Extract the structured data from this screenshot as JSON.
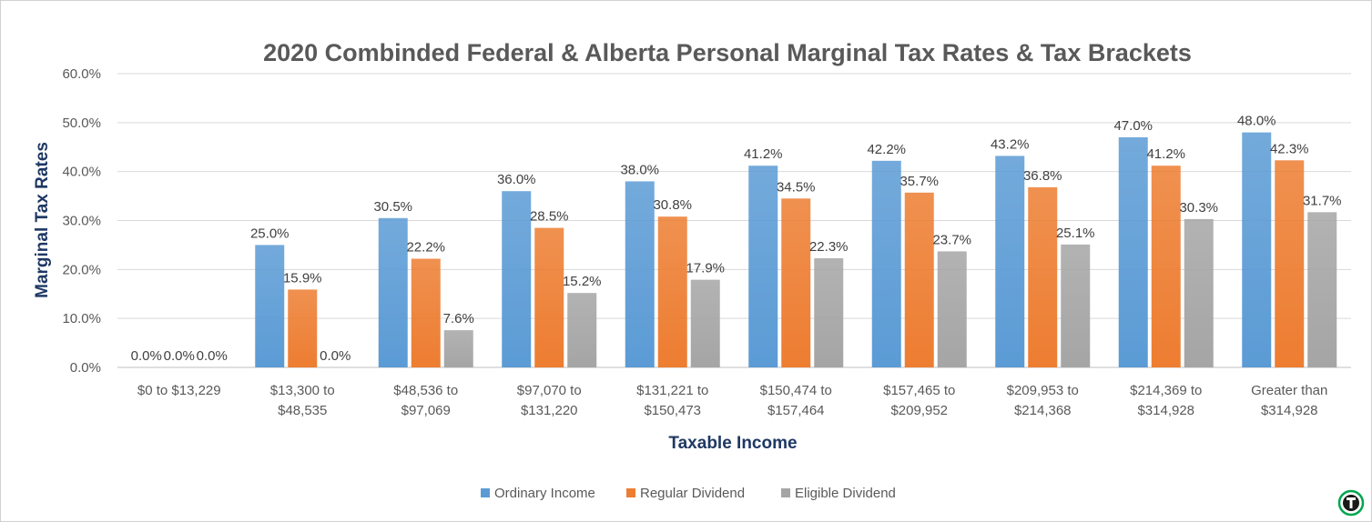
{
  "chart_data": {
    "type": "bar",
    "title": "2020 Combinded Federal & Alberta Personal Marginal Tax Rates & Tax Brackets",
    "xlabel": "Taxable Income",
    "ylabel": "Marginal Tax Rates",
    "ylim": [
      0,
      60
    ],
    "yticks": [
      "0.0%",
      "10.0%",
      "20.0%",
      "30.0%",
      "40.0%",
      "50.0%",
      "60.0%"
    ],
    "grid": true,
    "legend_position": "bottom",
    "categories": [
      [
        "$0 to $13,229"
      ],
      [
        "$13,300 to",
        "$48,535"
      ],
      [
        "$48,536 to",
        "$97,069"
      ],
      [
        "$97,070 to",
        "$131,220"
      ],
      [
        "$131,221 to",
        "$150,473"
      ],
      [
        "$150,474 to",
        "$157,464"
      ],
      [
        "$157,465 to",
        "$209,952"
      ],
      [
        "$209,953 to",
        "$214,368"
      ],
      [
        "$214,369 to",
        "$314,928"
      ],
      [
        "Greater than",
        "$314,928"
      ]
    ],
    "series": [
      {
        "name": "Ordinary Income",
        "color": "#5b9bd5",
        "values": [
          0.0,
          25.0,
          30.5,
          36.0,
          38.0,
          41.2,
          42.2,
          43.2,
          47.0,
          48.0
        ],
        "labels": [
          "0.0%",
          "25.0%",
          "30.5%",
          "36.0%",
          "38.0%",
          "41.2%",
          "42.2%",
          "43.2%",
          "47.0%",
          "48.0%"
        ]
      },
      {
        "name": "Regular Dividend",
        "color": "#ed7d31",
        "values": [
          0.0,
          15.9,
          22.2,
          28.5,
          30.8,
          34.5,
          35.7,
          36.8,
          41.2,
          42.3
        ],
        "labels": [
          "0.0%",
          "15.9%",
          "22.2%",
          "28.5%",
          "30.8%",
          "34.5%",
          "35.7%",
          "36.8%",
          "41.2%",
          "42.3%"
        ]
      },
      {
        "name": "Eligible Dividend",
        "color": "#a5a5a5",
        "values": [
          0.0,
          0.0,
          7.6,
          15.2,
          17.9,
          22.3,
          23.7,
          25.1,
          30.3,
          31.7
        ],
        "labels": [
          "0.0%",
          "0.0%",
          "7.6%",
          "15.2%",
          "17.9%",
          "22.3%",
          "23.7%",
          "25.1%",
          "30.3%",
          "31.7%"
        ]
      }
    ]
  },
  "watermark": {
    "icon": "tax-logo-icon",
    "color": "#00a651"
  }
}
